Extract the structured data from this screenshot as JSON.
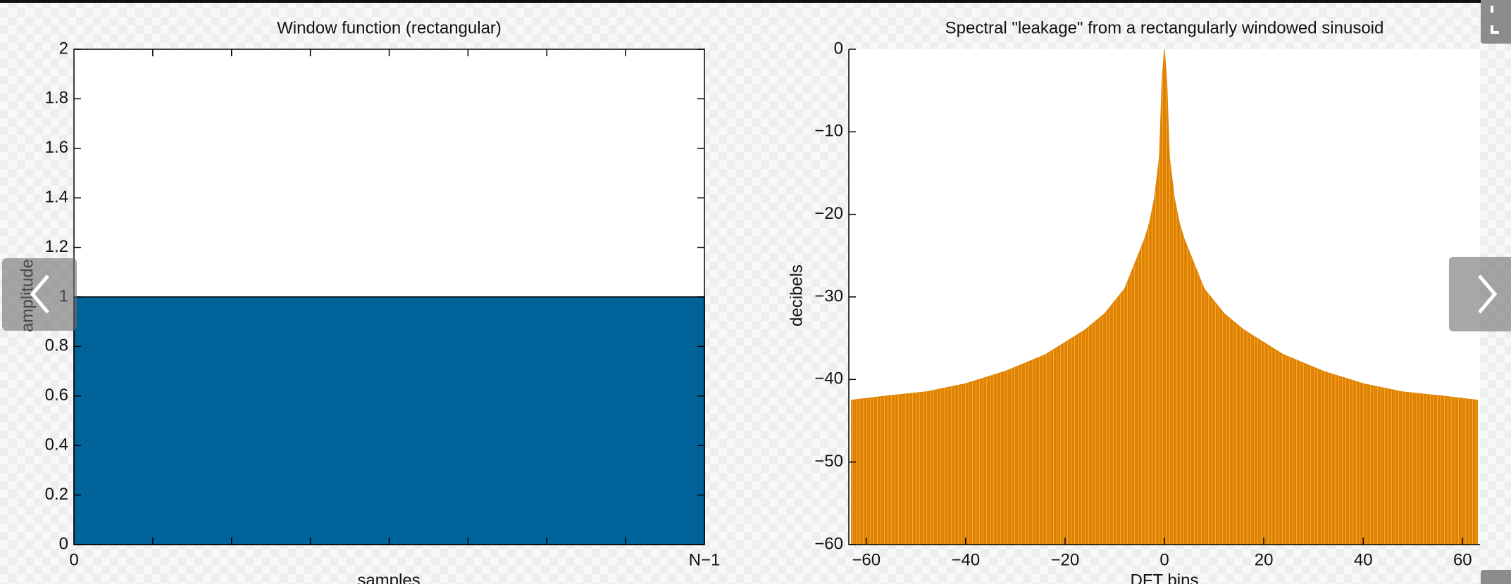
{
  "chart_data": [
    {
      "type": "area",
      "title": "Window function (rectangular)",
      "x_label": "samples",
      "y_label": "amplitude",
      "categories": [
        "0",
        "N−1"
      ],
      "values": [
        1,
        1
      ],
      "color": "#00649b",
      "ylim": [
        0,
        2
      ],
      "yticks": [
        0,
        0.2,
        0.4,
        0.6,
        0.8,
        1,
        1.2,
        1.4,
        1.6,
        1.8,
        2
      ]
    },
    {
      "type": "area",
      "title": "Spectral \"leakage\" from a rectangularly windowed sinusoid",
      "x_label": "DFT bins",
      "y_label": "decibels",
      "x": [
        -63,
        -56,
        -48,
        -40,
        -32,
        -24,
        -16,
        -12,
        -8,
        -6,
        -4,
        -3,
        -2,
        -1,
        -0.5,
        0,
        0.5,
        1,
        2,
        3,
        4,
        6,
        8,
        12,
        16,
        24,
        32,
        40,
        48,
        56,
        63
      ],
      "values": [
        -42.5,
        -42,
        -41.5,
        -40.5,
        -39,
        -37,
        -34,
        -32,
        -29,
        -26,
        -23,
        -21,
        -18,
        -13,
        -4,
        0,
        -4,
        -13,
        -18,
        -21,
        -23,
        -26,
        -29,
        -32,
        -34,
        -37,
        -39,
        -40.5,
        -41.5,
        -42,
        -42.5
      ],
      "color": "#e08300",
      "xlim": [
        -63.5,
        63.5
      ],
      "xticks": [
        {
          "value": -60,
          "label": "−60"
        },
        {
          "value": -40,
          "label": "−40"
        },
        {
          "value": -20,
          "label": "−20"
        },
        0,
        20,
        40,
        60
      ],
      "ylim": [
        -60,
        0
      ],
      "yticks": [
        {
          "value": -60,
          "label": "−60"
        },
        {
          "value": -50,
          "label": "−50"
        },
        {
          "value": -40,
          "label": "−40"
        },
        {
          "value": -30,
          "label": "−30"
        },
        {
          "value": -20,
          "label": "−20"
        },
        {
          "value": -10,
          "label": "−10"
        },
        0
      ]
    }
  ]
}
